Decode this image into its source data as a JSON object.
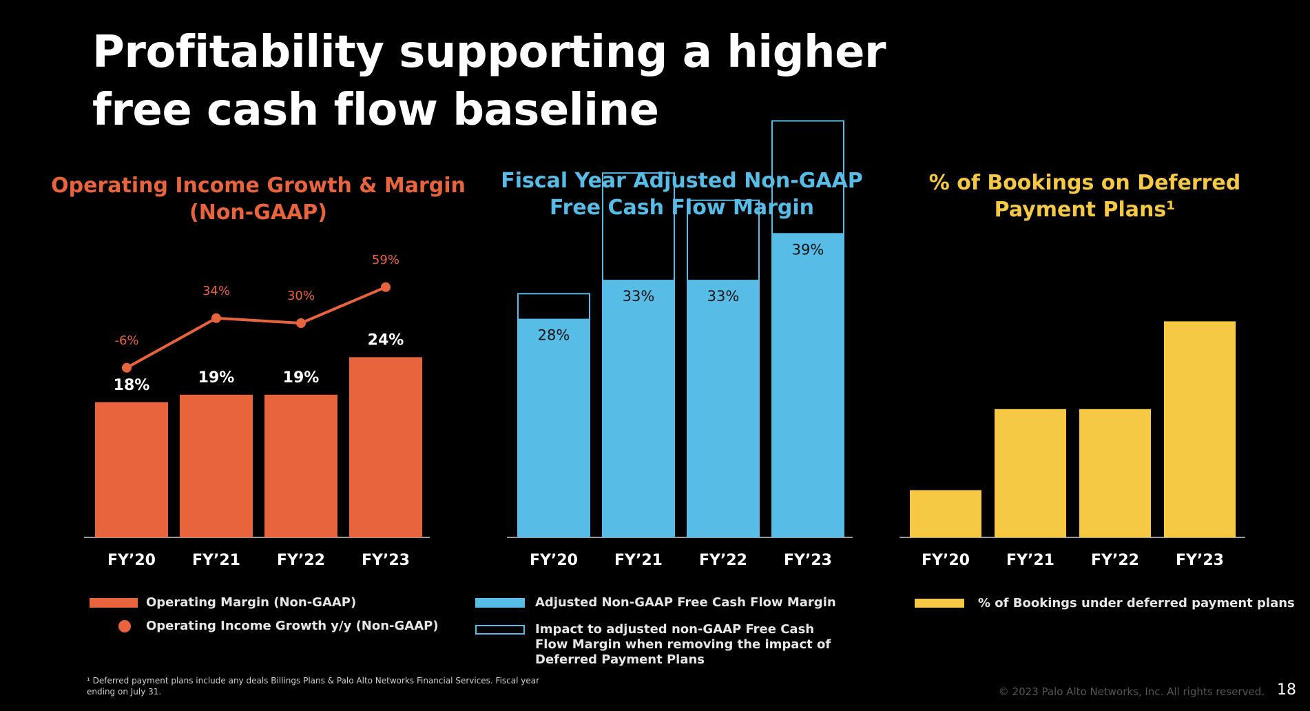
{
  "title": "Profitability supporting a higher free cash flow baseline",
  "chart_data": [
    {
      "type": "bar",
      "title": "Operating Income Growth & Margin (Non-GAAP)",
      "categories": [
        "FY’20",
        "FY’21",
        "FY’22",
        "FY’23"
      ],
      "series": [
        {
          "name": "Operating Margin (Non-GAAP)",
          "type": "bar",
          "values": [
            18,
            19,
            19,
            24
          ],
          "labels": [
            "18%",
            "19%",
            "19%",
            "24%"
          ],
          "color": "#e8643c"
        },
        {
          "name": "Operating Income Growth y/y (Non-GAAP)",
          "type": "line",
          "values": [
            -6,
            34,
            30,
            59
          ],
          "labels": [
            "-6%",
            "34%",
            "30%",
            "59%"
          ],
          "color": "#e8643c"
        }
      ],
      "ylim": [
        0,
        30
      ]
    },
    {
      "type": "bar",
      "title": "Fiscal Year Adjusted Non-GAAP Free Cash Flow Margin",
      "categories": [
        "FY’20",
        "FY’21",
        "FY’22",
        "FY’23"
      ],
      "series": [
        {
          "name": "Adjusted Non-GAAP Free Cash Flow Margin",
          "values": [
            28,
            33,
            33,
            39
          ],
          "labels": [
            "28%",
            "33%",
            "33%",
            "39%"
          ],
          "color": "#57bde6"
        },
        {
          "name": "Impact to adjusted non-GAAP Free Cash Flow Margin when removing the impact of Deferred Payment Plans",
          "values": [
            3.3,
            13.8,
            10.3,
            14.5
          ],
          "color": "#57bde6",
          "style": "outline"
        }
      ],
      "stacked": true,
      "ylim": [
        0,
        60
      ]
    },
    {
      "type": "bar",
      "title": "% of Bookings on Deferred Payment Plans¹",
      "categories": [
        "FY’20",
        "FY’21",
        "FY’22",
        "FY’23"
      ],
      "series": [
        {
          "name": "% of Bookings under deferred payment plans",
          "values": [
            7,
            19,
            19,
            32
          ],
          "color": "#f6c944"
        }
      ],
      "ylim": [
        0,
        40
      ]
    }
  ],
  "footnote": "¹ Deferred payment plans include any deals Billings Plans & Palo Alto Networks Financial Services. Fiscal year ending on July 31.",
  "copyright": "© 2023 Palo Alto Networks, Inc. All rights reserved.",
  "page_number": "18",
  "axis_color": "#9a9a9a"
}
